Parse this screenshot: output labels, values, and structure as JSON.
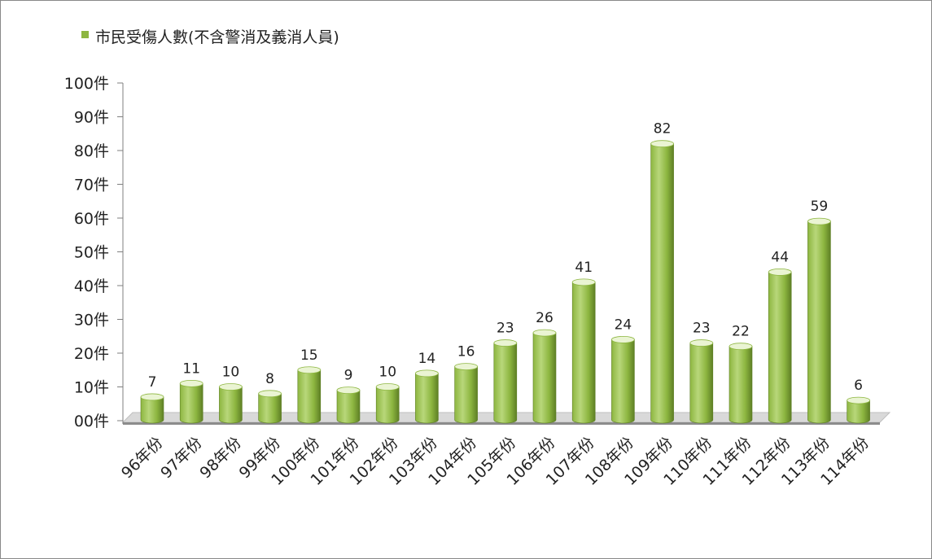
{
  "chart_data": {
    "type": "bar",
    "categories": [
      "96年份",
      "97年份",
      "98年份",
      "99年份",
      "100年份",
      "101年份",
      "102年份",
      "103年份",
      "104年份",
      "105年份",
      "106年份",
      "107年份",
      "108年份",
      "109年份",
      "110年份",
      "111年份",
      "112年份",
      "113年份",
      "114年份"
    ],
    "series": [
      {
        "name": "市民受傷人數(不含警消及義消人員)",
        "values": [
          7,
          11,
          10,
          8,
          15,
          9,
          10,
          14,
          16,
          23,
          26,
          41,
          24,
          82,
          23,
          22,
          44,
          59,
          6
        ]
      }
    ],
    "y_tick_labels": [
      "00件",
      "10件",
      "20件",
      "30件",
      "40件",
      "50件",
      "60件",
      "70件",
      "80件",
      "90件",
      "100件"
    ],
    "ylim": [
      0,
      100
    ],
    "title": "",
    "xlabel": "",
    "ylabel": "",
    "legend_position": "top-left",
    "grid": false,
    "style": "3d-cylinder"
  },
  "legend": {
    "label": "市民受傷人數(不含警消及義消人員)"
  },
  "colors": {
    "bar_light": "#b8d77a",
    "bar_mid": "#8db640",
    "bar_dark": "#5e7f25",
    "bar_top": "#eaf4d3",
    "floor_top": "#d9d9d9",
    "floor_front": "#8c8c8c"
  }
}
